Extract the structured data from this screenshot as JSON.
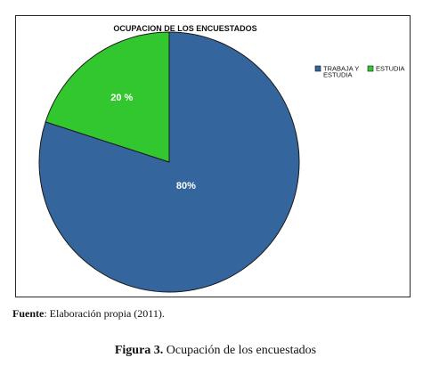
{
  "chart_data": {
    "type": "pie",
    "title": "OCUPACION DE LOS ENCUESTADOS",
    "slices": [
      {
        "label": "TRABAJA Y ESTUDIA",
        "value": 80,
        "display": "80%",
        "color": "#34659c"
      },
      {
        "label": "ESTUDIA",
        "value": 20,
        "display": "20 %",
        "color": "#33c72f"
      }
    ],
    "legend": {
      "placement": "top-right"
    },
    "legend_items": [
      {
        "line1": "TRABAJA Y",
        "line2": "ESTUDIA",
        "color": "#34659c"
      },
      {
        "line1": "ESTUDIA",
        "line2": "",
        "color": "#33c72f"
      }
    ]
  },
  "source": {
    "label": "Fuente",
    "text": ": Elaboración propia (2011)."
  },
  "caption": {
    "number": "Figura 3.",
    "text": " Ocupación de los encuestados"
  }
}
